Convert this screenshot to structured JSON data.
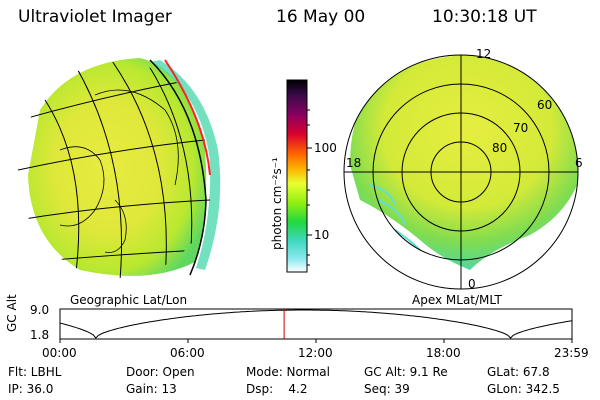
{
  "header": {
    "instrument": "Ultraviolet Imager",
    "date": "16 May 00",
    "time": "10:30:18 UT"
  },
  "left_panel": {
    "caption": "Geographic Lat/Lon"
  },
  "right_panel": {
    "caption": "Apex MLat/MLT",
    "mlt_labels": [
      "12",
      "18",
      "6",
      "0"
    ],
    "mlat_labels": [
      "60",
      "70",
      "80"
    ]
  },
  "colorbar": {
    "unit_label": "photon cm⁻²s⁻¹",
    "ticks": [
      "100",
      "10"
    ],
    "colors": [
      "#000000",
      "#3a0a4a",
      "#8a0060",
      "#d80030",
      "#ff6000",
      "#ffb000",
      "#e8ff30",
      "#90f010",
      "#20d840",
      "#40d8c0",
      "#8ae8f0",
      "#ffffff"
    ]
  },
  "timeline": {
    "ylabel": "GC Alt",
    "y_ticks": [
      "9.0",
      "1.8"
    ],
    "x_ticks": [
      "00:00",
      "06:00",
      "12:00",
      "18:00",
      "23:59"
    ],
    "marker_time_fraction": 0.4377,
    "marker_color": "#cc0000"
  },
  "info": {
    "row1": [
      "Flt: LBHL",
      "Door: Open",
      "Mode: Normal",
      "GC Alt: 9.1 Re",
      "GLat: 67.8"
    ],
    "row2": [
      "IP: 36.0",
      "Gain: 13",
      "Dsp:    4.2",
      "Seq: 39",
      "GLon: 342.5"
    ]
  }
}
